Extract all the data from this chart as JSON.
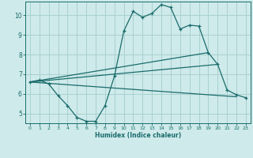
{
  "xlabel": "Humidex (Indice chaleur)",
  "ylabel": "",
  "bg_color": "#ceeaea",
  "grid_color": "#aad0d0",
  "line_color": "#1a6b6b",
  "xlim": [
    -0.5,
    23.5
  ],
  "ylim": [
    4.5,
    10.7
  ],
  "yticks": [
    5,
    6,
    7,
    8,
    9,
    10
  ],
  "xticks": [
    0,
    1,
    2,
    3,
    4,
    5,
    6,
    7,
    8,
    9,
    10,
    11,
    12,
    13,
    14,
    15,
    16,
    17,
    18,
    19,
    20,
    21,
    22,
    23
  ],
  "line1_x": [
    0,
    1,
    2,
    3,
    4,
    5,
    6,
    7,
    8,
    9,
    10,
    11,
    12,
    13,
    14,
    15,
    16,
    17,
    18,
    19,
    20,
    21,
    22,
    23
  ],
  "line1_y": [
    6.6,
    6.7,
    6.5,
    5.9,
    5.4,
    4.8,
    4.6,
    4.6,
    5.4,
    6.9,
    9.2,
    10.2,
    9.9,
    10.1,
    10.55,
    10.4,
    9.3,
    9.5,
    9.45,
    8.1,
    7.5,
    6.2,
    5.95,
    5.8
  ],
  "line2_x": [
    0,
    22
  ],
  "line2_y": [
    6.6,
    5.85
  ],
  "line3_x": [
    0,
    19
  ],
  "line3_y": [
    6.6,
    8.1
  ],
  "line4_x": [
    0,
    20
  ],
  "line4_y": [
    6.6,
    7.5
  ]
}
